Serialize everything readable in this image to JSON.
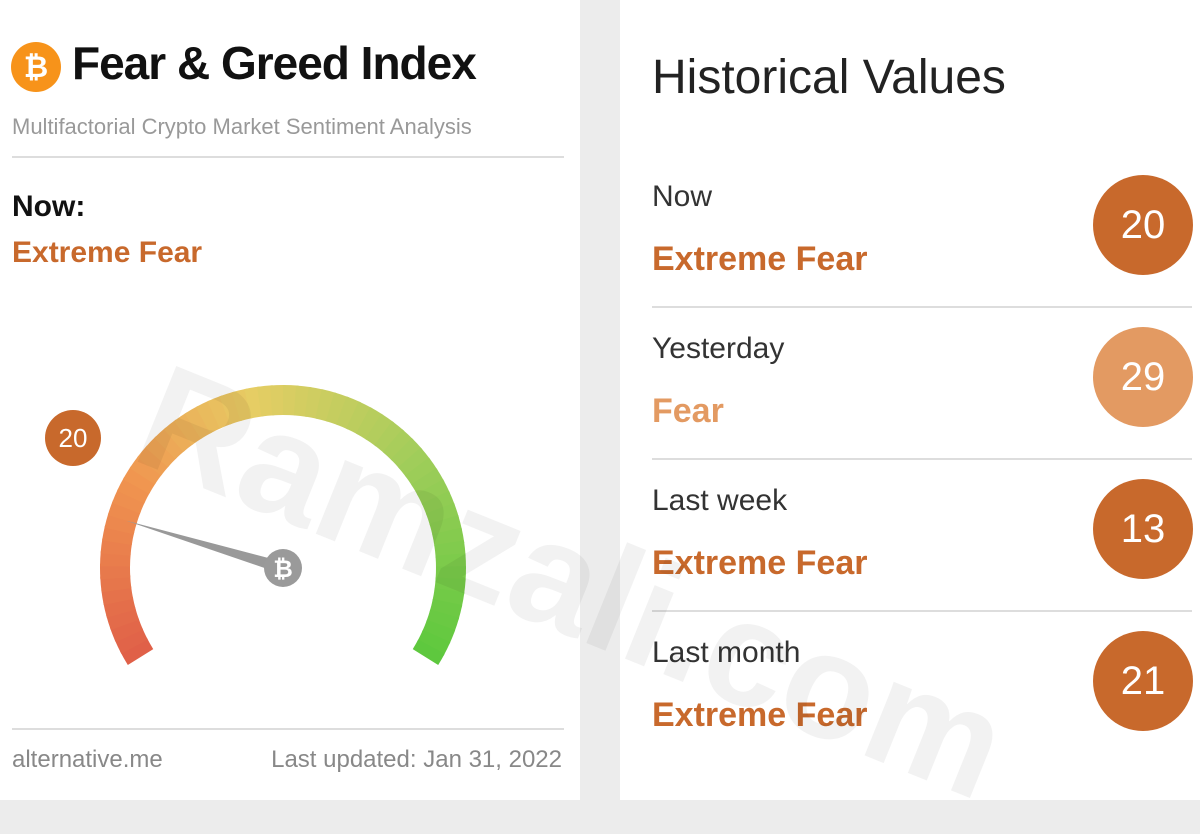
{
  "left": {
    "title": "Fear & Greed Index",
    "subtitle": "Multifactorial Crypto Market Sentiment Analysis",
    "now_label": "Now:",
    "now_status": "Extreme Fear",
    "now_color": "#c8692c",
    "gauge": {
      "value": 20,
      "range": [
        0,
        100
      ]
    },
    "source": "alternative.me",
    "updated": "Last updated: Jan 31, 2022"
  },
  "right": {
    "title": "Historical Values",
    "rows": [
      {
        "label": "Now",
        "status": "Extreme Fear",
        "value": 20,
        "color": "#c8692c"
      },
      {
        "label": "Yesterday",
        "status": "Fear",
        "value": 29,
        "color": "#e39a62"
      },
      {
        "label": "Last week",
        "status": "Extreme Fear",
        "value": 13,
        "color": "#c8692c"
      },
      {
        "label": "Last month",
        "status": "Extreme Fear",
        "value": 21,
        "color": "#c8692c"
      }
    ]
  },
  "watermark": "Ramzali.com"
}
